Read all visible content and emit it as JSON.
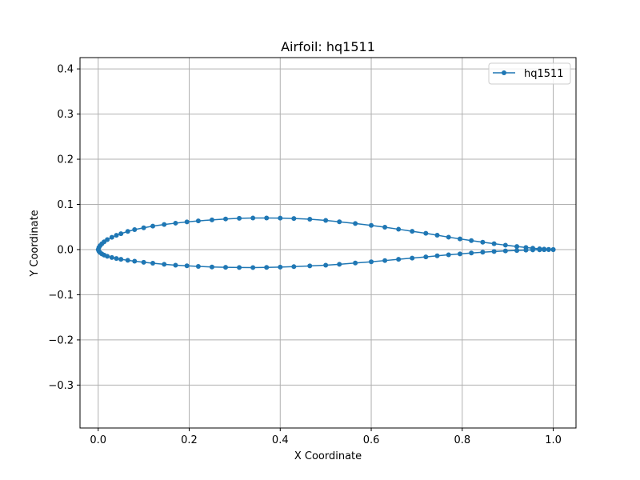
{
  "chart_data": {
    "type": "line",
    "title": "Airfoil: hq1511",
    "xlabel": "X Coordinate",
    "ylabel": "Y Coordinate",
    "xlim": [
      -0.04,
      1.05
    ],
    "ylim": [
      -0.395,
      0.425
    ],
    "xticks": [
      0.0,
      0.2,
      0.4,
      0.6,
      0.8,
      1.0
    ],
    "xtick_labels": [
      "0.0",
      "0.2",
      "0.4",
      "0.6",
      "0.8",
      "1.0"
    ],
    "yticks": [
      -0.3,
      -0.2,
      -0.1,
      0.0,
      0.1,
      0.2,
      0.3,
      0.4
    ],
    "ytick_labels": [
      "−0.3",
      "−0.2",
      "−0.1",
      "0.0",
      "0.1",
      "0.2",
      "0.3",
      "0.4"
    ],
    "grid": true,
    "legend_position": "top-right",
    "series": [
      {
        "name": "hq1511",
        "color": "#1f77b4",
        "marker": "circle",
        "points": [
          [
            1.0,
            0.0
          ],
          [
            0.99,
            0.0005
          ],
          [
            0.98,
            0.001
          ],
          [
            0.97,
            0.0018
          ],
          [
            0.955,
            0.003
          ],
          [
            0.94,
            0.0045
          ],
          [
            0.92,
            0.0068
          ],
          [
            0.895,
            0.0098
          ],
          [
            0.87,
            0.013
          ],
          [
            0.845,
            0.0163
          ],
          [
            0.82,
            0.0198
          ],
          [
            0.795,
            0.0236
          ],
          [
            0.77,
            0.0275
          ],
          [
            0.745,
            0.0318
          ],
          [
            0.72,
            0.036
          ],
          [
            0.69,
            0.0405
          ],
          [
            0.66,
            0.045
          ],
          [
            0.63,
            0.0495
          ],
          [
            0.6,
            0.0535
          ],
          [
            0.565,
            0.0578
          ],
          [
            0.53,
            0.0615
          ],
          [
            0.5,
            0.0645
          ],
          [
            0.465,
            0.0672
          ],
          [
            0.43,
            0.0688
          ],
          [
            0.4,
            0.0697
          ],
          [
            0.37,
            0.07
          ],
          [
            0.34,
            0.0698
          ],
          [
            0.31,
            0.0692
          ],
          [
            0.28,
            0.0678
          ],
          [
            0.25,
            0.0658
          ],
          [
            0.22,
            0.0635
          ],
          [
            0.195,
            0.0612
          ],
          [
            0.17,
            0.0585
          ],
          [
            0.145,
            0.0555
          ],
          [
            0.12,
            0.052
          ],
          [
            0.1,
            0.0482
          ],
          [
            0.08,
            0.0442
          ],
          [
            0.065,
            0.0402
          ],
          [
            0.05,
            0.0352
          ],
          [
            0.04,
            0.0315
          ],
          [
            0.03,
            0.0272
          ],
          [
            0.02,
            0.022
          ],
          [
            0.013,
            0.0172
          ],
          [
            0.008,
            0.0128
          ],
          [
            0.004,
            0.0085
          ],
          [
            0.0015,
            0.0045
          ],
          [
            0.0,
            0.0
          ],
          [
            0.0015,
            -0.0035
          ],
          [
            0.004,
            -0.0065
          ],
          [
            0.008,
            -0.0095
          ],
          [
            0.013,
            -0.0122
          ],
          [
            0.02,
            -0.0148
          ],
          [
            0.03,
            -0.0175
          ],
          [
            0.04,
            -0.0198
          ],
          [
            0.05,
            -0.0215
          ],
          [
            0.065,
            -0.0238
          ],
          [
            0.08,
            -0.0258
          ],
          [
            0.1,
            -0.0282
          ],
          [
            0.12,
            -0.0302
          ],
          [
            0.145,
            -0.0325
          ],
          [
            0.17,
            -0.0345
          ],
          [
            0.195,
            -0.036
          ],
          [
            0.22,
            -0.0372
          ],
          [
            0.25,
            -0.0385
          ],
          [
            0.28,
            -0.0392
          ],
          [
            0.31,
            -0.0397
          ],
          [
            0.34,
            -0.0398
          ],
          [
            0.37,
            -0.0395
          ],
          [
            0.4,
            -0.0388
          ],
          [
            0.43,
            -0.0378
          ],
          [
            0.465,
            -0.0362
          ],
          [
            0.5,
            -0.0345
          ],
          [
            0.53,
            -0.0325
          ],
          [
            0.565,
            -0.0298
          ],
          [
            0.6,
            -0.027
          ],
          [
            0.63,
            -0.0243
          ],
          [
            0.66,
            -0.0215
          ],
          [
            0.69,
            -0.0188
          ],
          [
            0.72,
            -0.0162
          ],
          [
            0.745,
            -0.0138
          ],
          [
            0.77,
            -0.0115
          ],
          [
            0.795,
            -0.0095
          ],
          [
            0.82,
            -0.0075
          ],
          [
            0.845,
            -0.0058
          ],
          [
            0.87,
            -0.0043
          ],
          [
            0.895,
            -0.003
          ],
          [
            0.92,
            -0.002
          ],
          [
            0.94,
            -0.0012
          ],
          [
            0.955,
            -0.0007
          ],
          [
            0.97,
            -0.0004
          ],
          [
            0.98,
            -0.0002
          ],
          [
            0.99,
            -0.0001
          ],
          [
            1.0,
            0.0
          ]
        ]
      }
    ]
  }
}
